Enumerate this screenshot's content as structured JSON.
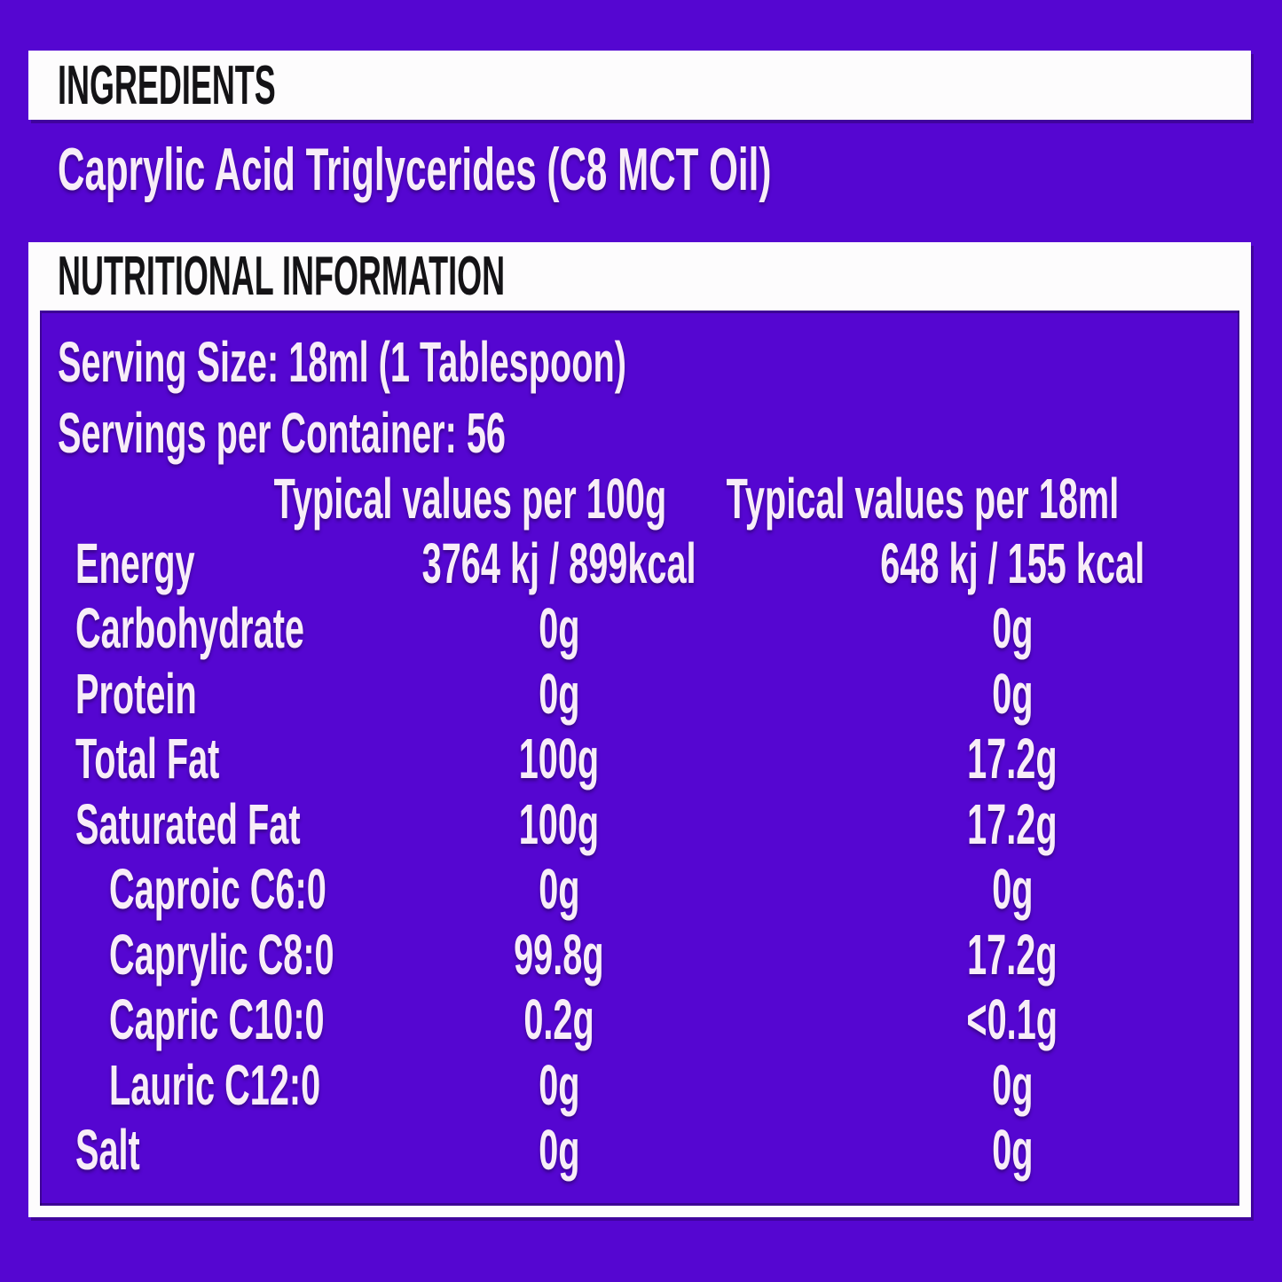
{
  "colors": {
    "purple": "#5506d1",
    "paper": "#fdfcfd",
    "inkdark": "#141316",
    "inklight": "#f8edf8"
  },
  "ingredients": {
    "title": "INGREDIENTS",
    "text": "Caprylic Acid Triglycerides (C8 MCT Oil)"
  },
  "nutrition": {
    "title": "NUTRITIONAL INFORMATION",
    "serving_size": "Serving Size: 18ml (1 Tablespoon)",
    "servings_per_container": "Servings per Container: 56",
    "col_per_100g": "Typical values per 100g",
    "col_per_18ml": "Typical values per 18ml",
    "rows": [
      {
        "label": "Energy",
        "per100": "3764 kj / 899kcal",
        "per18": "648 kj / 155 kcal",
        "indent": false
      },
      {
        "label": "Carbohydrate",
        "per100": "0g",
        "per18": "0g",
        "indent": false
      },
      {
        "label": "Protein",
        "per100": "0g",
        "per18": "0g",
        "indent": false
      },
      {
        "label": "Total Fat",
        "per100": "100g",
        "per18": "17.2g",
        "indent": false
      },
      {
        "label": "Saturated Fat",
        "per100": "100g",
        "per18": "17.2g",
        "indent": false
      },
      {
        "label": "Caproic C6:0",
        "per100": "0g",
        "per18": "0g",
        "indent": true
      },
      {
        "label": "Caprylic C8:0",
        "per100": "99.8g",
        "per18": "17.2g",
        "indent": true
      },
      {
        "label": "Capric C10:0",
        "per100": "0.2g",
        "per18": "<0.1g",
        "indent": true
      },
      {
        "label": "Lauric C12:0",
        "per100": "0g",
        "per18": "0g",
        "indent": true
      },
      {
        "label": "Salt",
        "per100": "0g",
        "per18": "0g",
        "indent": false
      }
    ]
  }
}
